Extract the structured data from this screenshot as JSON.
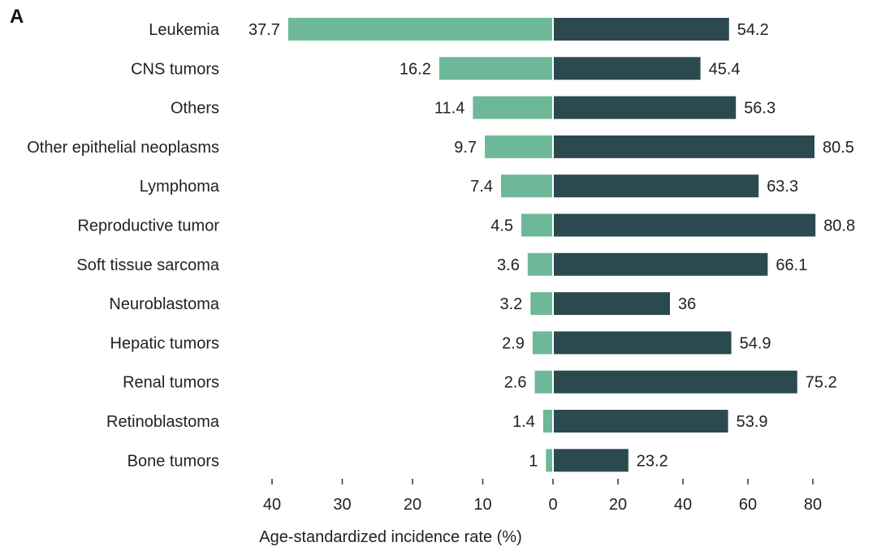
{
  "panel_label": "A",
  "chart_data": {
    "type": "bar",
    "orientation": "horizontal-diverging",
    "categories": [
      "Leukemia",
      "CNS tumors",
      "Others",
      "Other epithelial neoplasms",
      "Lymphoma",
      "Reproductive tumor",
      "Soft tissue sarcoma",
      "Neuroblastoma",
      "Hepatic tumors",
      "Renal tumors",
      "Retinoblastoma",
      "Bone tumors"
    ],
    "series": [
      {
        "side": "left",
        "color": "#6db899",
        "values": [
          37.7,
          16.2,
          11.4,
          9.7,
          7.4,
          4.5,
          3.6,
          3.2,
          2.9,
          2.6,
          1.4,
          1
        ],
        "labels": [
          "37.7",
          "16.2",
          "11.4",
          "9.7",
          "7.4",
          "4.5",
          "3.6",
          "3.2",
          "2.9",
          "2.6",
          "1.4",
          "1"
        ]
      },
      {
        "side": "right",
        "color": "#2b4a4f",
        "values": [
          54.2,
          45.4,
          56.3,
          80.5,
          63.3,
          80.8,
          66.1,
          36,
          54.9,
          75.2,
          53.9,
          23.2
        ],
        "labels": [
          "54.2",
          "45.4",
          "56.3",
          "80.5",
          "63.3",
          "80.8",
          "66.1",
          "36",
          "54.9",
          "75.2",
          "53.9",
          "23.2"
        ]
      }
    ],
    "left_axis": {
      "range": [
        0,
        40
      ],
      "ticks": [
        "40",
        "30",
        "20",
        "10",
        "0"
      ]
    },
    "right_axis": {
      "range": [
        0,
        80
      ],
      "ticks": [
        "20",
        "40",
        "60",
        "80"
      ]
    },
    "xlabel": "Age-standardized incidence rate (%)",
    "grid": false,
    "legend": "none"
  }
}
